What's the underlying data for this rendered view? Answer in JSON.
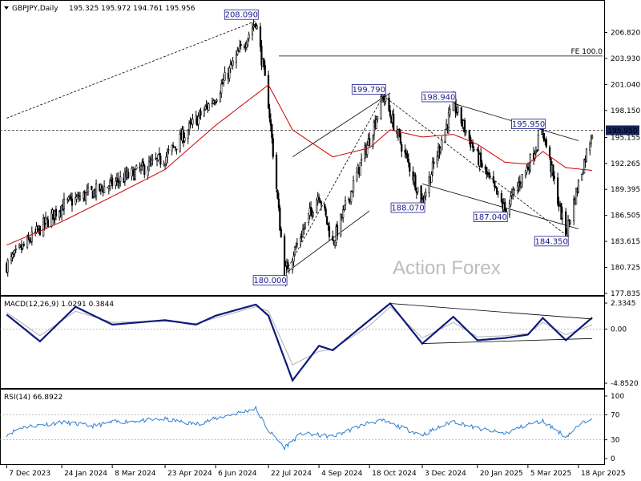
{
  "chart_data": [
    {
      "type": "candlestick",
      "title": "GBPJPY,Daily",
      "ohlc_text": "195.325 195.972 194.761 195.956",
      "y_ticks": [
        "206.820",
        "203.930",
        "201.040",
        "198.150",
        "195.155",
        "192.265",
        "189.395",
        "186.505",
        "183.615",
        "180.725",
        "177.835"
      ],
      "ylim": [
        177.835,
        208.82
      ],
      "x_ticks": [
        "7 Dec 2023",
        "24 Jan 2024",
        "8 Mar 2024",
        "23 Apr 2024",
        "6 Jun 2024",
        "22 Jul 2024",
        "4 Sep 2024",
        "18 Oct 2024",
        "3 Dec 2024",
        "20 Jan 2025",
        "5 Mar 2025",
        "18 Apr 2025"
      ],
      "price_anchors": [
        [
          "2023-12-07",
          181.0
        ],
        [
          "2024-01-24",
          187.6
        ],
        [
          "2024-03-08",
          190.0
        ],
        [
          "2024-04-23",
          192.9
        ],
        [
          "2024-06-06",
          199.7
        ],
        [
          "2024-07-11",
          208.09
        ],
        [
          "2024-07-22",
          199.0
        ],
        [
          "2024-08-05",
          180.0
        ],
        [
          "2024-09-04",
          189.0
        ],
        [
          "2024-09-16",
          183.4
        ],
        [
          "2024-10-18",
          195.0
        ],
        [
          "2024-10-30",
          199.79
        ],
        [
          "2024-12-03",
          188.07
        ],
        [
          "2024-12-30",
          198.94
        ],
        [
          "2025-01-20",
          193.0
        ],
        [
          "2025-02-13",
          187.04
        ],
        [
          "2025-03-05",
          192.0
        ],
        [
          "2025-03-18",
          195.95
        ],
        [
          "2025-04-07",
          184.35
        ],
        [
          "2025-04-18",
          190.0
        ],
        [
          "2025-04-30",
          195.956
        ]
      ],
      "ma_anchors": [
        [
          "2023-12-07",
          183.2
        ],
        [
          "2024-01-24",
          185.8
        ],
        [
          "2024-03-08",
          188.6
        ],
        [
          "2024-04-23",
          191.6
        ],
        [
          "2024-06-06",
          196.5
        ],
        [
          "2024-07-22",
          201.0
        ],
        [
          "2024-08-12",
          196.0
        ],
        [
          "2024-09-16",
          193.0
        ],
        [
          "2024-10-18",
          194.0
        ],
        [
          "2024-11-05",
          196.0
        ],
        [
          "2024-12-03",
          195.2
        ],
        [
          "2024-12-30",
          195.5
        ],
        [
          "2025-01-20",
          194.4
        ],
        [
          "2025-02-13",
          192.4
        ],
        [
          "2025-03-05",
          192.2
        ],
        [
          "2025-03-18",
          193.6
        ],
        [
          "2025-04-07",
          191.8
        ],
        [
          "2025-04-30",
          191.5
        ]
      ],
      "price_labels": [
        {
          "date": "2024-07-11",
          "value": 208.09,
          "text": "208.090"
        },
        {
          "date": "2024-10-30",
          "value": 199.79,
          "text": "199.790"
        },
        {
          "date": "2024-12-30",
          "value": 198.94,
          "text": "198.940"
        },
        {
          "date": "2025-03-18",
          "value": 195.95,
          "text": "195.950"
        },
        {
          "date": "2024-12-03",
          "value": 188.07,
          "text": "188.070"
        },
        {
          "date": "2025-02-13",
          "value": 187.04,
          "text": "187.040"
        },
        {
          "date": "2025-04-07",
          "value": 184.35,
          "text": "184.350"
        },
        {
          "date": "2024-08-05",
          "value": 180.0,
          "text": "180.000"
        }
      ],
      "fe_label": "FE 100.0",
      "fe_level": 204.2,
      "current_price": "195.950",
      "current_value": 195.956,
      "watermark": "Action Forex",
      "colors": {
        "candles": "#000000",
        "ma": "#cc0000",
        "labels": "#1a1a8c",
        "current_bg": "#14245c"
      }
    },
    {
      "type": "line",
      "title": "MACD(12,26,9) 1.0291 0.3844",
      "y_ticks": [
        "2.3345",
        "0.00",
        "-4.8520"
      ],
      "ylim": [
        -4.852,
        2.3345
      ],
      "macd_anchors": [
        [
          "2023-12-07",
          1.3
        ],
        [
          "2024-01-05",
          -1.1
        ],
        [
          "2024-02-05",
          2.0
        ],
        [
          "2024-03-08",
          0.4
        ],
        [
          "2024-04-23",
          0.8
        ],
        [
          "2024-05-20",
          0.4
        ],
        [
          "2024-06-06",
          1.2
        ],
        [
          "2024-07-11",
          2.2
        ],
        [
          "2024-07-22",
          1.2
        ],
        [
          "2024-08-12",
          -4.6
        ],
        [
          "2024-09-04",
          -1.5
        ],
        [
          "2024-09-16",
          -1.9
        ],
        [
          "2024-10-18",
          0.8
        ],
        [
          "2024-11-05",
          2.3
        ],
        [
          "2024-12-03",
          -1.3
        ],
        [
          "2024-12-30",
          1.1
        ],
        [
          "2025-01-20",
          -1.0
        ],
        [
          "2025-02-13",
          -0.8
        ],
        [
          "2025-03-05",
          -0.5
        ],
        [
          "2025-03-18",
          1.0
        ],
        [
          "2025-04-07",
          -1.0
        ],
        [
          "2025-04-30",
          1.03
        ]
      ],
      "signal_anchors": [
        [
          "2023-12-07",
          1.5
        ],
        [
          "2024-01-05",
          -0.6
        ],
        [
          "2024-02-05",
          1.6
        ],
        [
          "2024-03-08",
          0.6
        ],
        [
          "2024-04-23",
          0.7
        ],
        [
          "2024-05-20",
          0.5
        ],
        [
          "2024-06-06",
          1.0
        ],
        [
          "2024-07-11",
          2.0
        ],
        [
          "2024-07-22",
          1.6
        ],
        [
          "2024-08-12",
          -3.2
        ],
        [
          "2024-09-04",
          -2.0
        ],
        [
          "2024-09-16",
          -1.8
        ],
        [
          "2024-10-18",
          0.3
        ],
        [
          "2024-11-05",
          2.0
        ],
        [
          "2024-12-03",
          -0.8
        ],
        [
          "2024-12-30",
          0.6
        ],
        [
          "2025-01-20",
          -0.7
        ],
        [
          "2025-02-13",
          -0.6
        ],
        [
          "2025-03-05",
          -0.4
        ],
        [
          "2025-03-18",
          0.6
        ],
        [
          "2025-04-07",
          -0.5
        ],
        [
          "2025-04-30",
          0.38
        ]
      ]
    },
    {
      "type": "line",
      "title": "RSI(14) 66.8922",
      "y_ticks": [
        "100",
        "70",
        "30",
        "0"
      ],
      "ylim": [
        0,
        100
      ],
      "rsi_anchors": [
        [
          "2023-12-07",
          38
        ],
        [
          "2023-12-20",
          50
        ],
        [
          "2024-01-24",
          58
        ],
        [
          "2024-02-20",
          52
        ],
        [
          "2024-03-08",
          58
        ],
        [
          "2024-04-23",
          63
        ],
        [
          "2024-05-20",
          55
        ],
        [
          "2024-06-06",
          64
        ],
        [
          "2024-07-11",
          80
        ],
        [
          "2024-07-22",
          45
        ],
        [
          "2024-08-05",
          18
        ],
        [
          "2024-08-20",
          40
        ],
        [
          "2024-09-16",
          35
        ],
        [
          "2024-10-18",
          58
        ],
        [
          "2024-10-30",
          60
        ],
        [
          "2024-12-03",
          38
        ],
        [
          "2024-12-30",
          60
        ],
        [
          "2025-01-20",
          48
        ],
        [
          "2025-02-13",
          40
        ],
        [
          "2025-03-05",
          55
        ],
        [
          "2025-03-18",
          60
        ],
        [
          "2025-04-07",
          35
        ],
        [
          "2025-04-18",
          52
        ],
        [
          "2025-04-30",
          67
        ]
      ],
      "color": "#2b7fd6"
    }
  ]
}
